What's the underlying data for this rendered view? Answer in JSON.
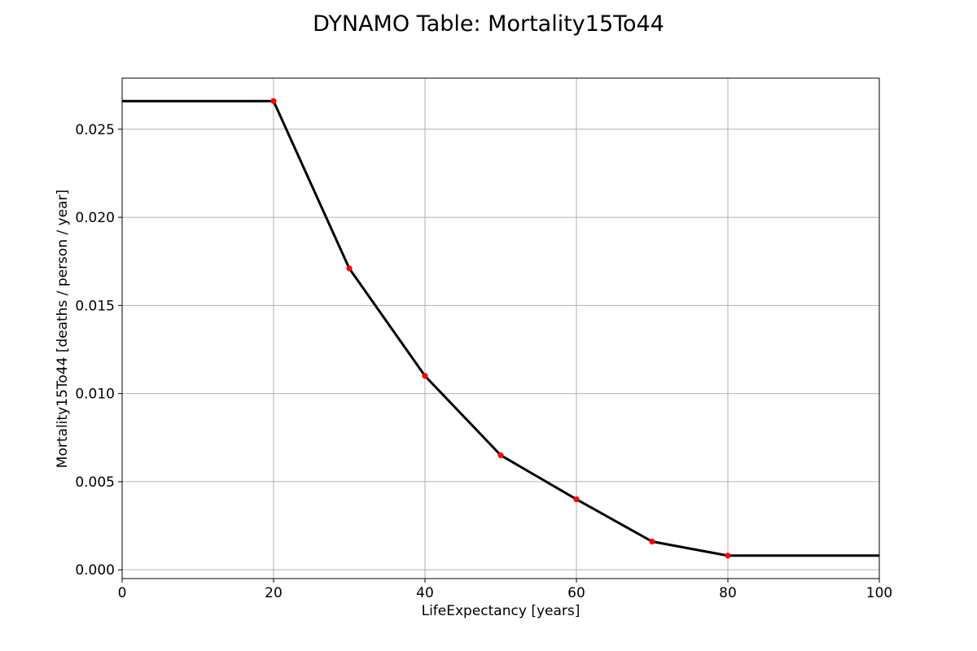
{
  "chart_data": {
    "type": "line",
    "title": "DYNAMO Table: Mortality15To44",
    "xlabel": "LifeExpectancy [years]",
    "ylabel": "Mortality15To44 [deaths / person / year]",
    "xlim": [
      0,
      100
    ],
    "ylim": [
      -0.0005,
      0.0279
    ],
    "xticks": [
      0,
      20,
      40,
      60,
      80,
      100
    ],
    "xtick_labels": [
      "0",
      "20",
      "40",
      "60",
      "80",
      "100"
    ],
    "yticks": [
      0.0,
      0.005,
      0.01,
      0.015,
      0.02,
      0.025
    ],
    "ytick_labels": [
      "0.000",
      "0.005",
      "0.010",
      "0.015",
      "0.020",
      "0.025"
    ],
    "grid": true,
    "line_color": "#000000",
    "marker_color": "#ff0000",
    "line": {
      "x": [
        0,
        20,
        30,
        40,
        50,
        60,
        70,
        80,
        100
      ],
      "y": [
        0.0266,
        0.0266,
        0.0171,
        0.011,
        0.0065,
        0.004,
        0.0016,
        0.0008,
        0.0008
      ]
    },
    "points": {
      "x": [
        20,
        30,
        40,
        50,
        60,
        70,
        80
      ],
      "y": [
        0.0266,
        0.0171,
        0.011,
        0.0065,
        0.004,
        0.0016,
        0.0008
      ]
    }
  }
}
